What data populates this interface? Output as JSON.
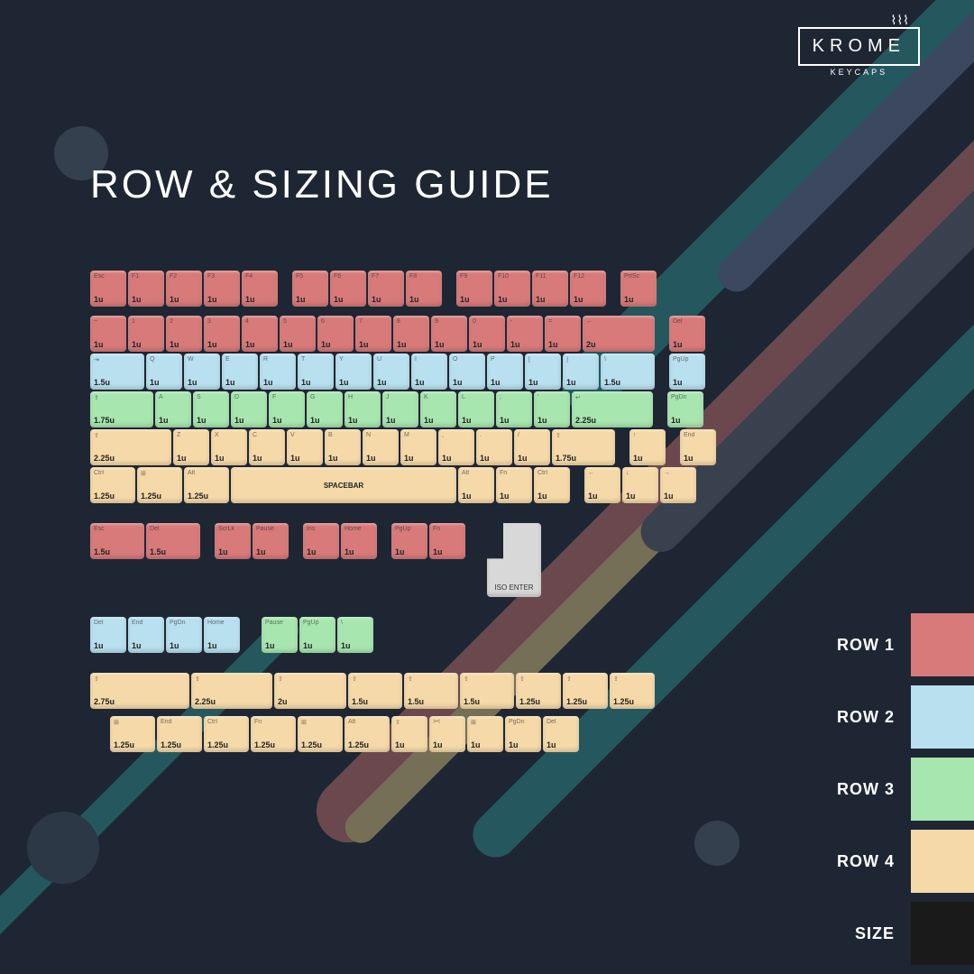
{
  "brand": {
    "name": "KROME",
    "sub": "KEYCAPS"
  },
  "title": "ROW & SIZING GUIDE",
  "unit": 40,
  "colors": {
    "row1": "#d87a7a",
    "row2": "#b8e0ef",
    "row3": "#a8e6b0",
    "row4": "#f5d9a8",
    "size": "#1a1a1a",
    "iso": "#d8d8d8",
    "bg": "#1e2633"
  },
  "legend": [
    {
      "label": "ROW 1",
      "color": "row1"
    },
    {
      "label": "ROW 2",
      "color": "row2"
    },
    {
      "label": "ROW 3",
      "color": "row3"
    },
    {
      "label": "ROW 4",
      "color": "row4"
    },
    {
      "label": "SIZE",
      "color": "size"
    }
  ],
  "rows": [
    {
      "c": "row1",
      "keys": [
        {
          "l": "Esc",
          "s": 1
        },
        {
          "l": "F1",
          "s": 1
        },
        {
          "l": "F2",
          "s": 1
        },
        {
          "l": "F3",
          "s": 1
        },
        {
          "l": "F4",
          "s": 1
        },
        {
          "gap": 0.3
        },
        {
          "l": "F5",
          "s": 1
        },
        {
          "l": "F6",
          "s": 1
        },
        {
          "l": "F7",
          "s": 1
        },
        {
          "l": "F8",
          "s": 1
        },
        {
          "gap": 0.3
        },
        {
          "l": "F9",
          "s": 1
        },
        {
          "l": "F10",
          "s": 1
        },
        {
          "l": "F11",
          "s": 1
        },
        {
          "l": "F12",
          "s": 1
        },
        {
          "gap": 0.3
        },
        {
          "l": "PrtSc",
          "s": 1
        }
      ]
    },
    {
      "spacer": 8
    },
    {
      "c": "row1",
      "keys": [
        {
          "l": "~",
          "s": 1
        },
        {
          "l": "1",
          "s": 1
        },
        {
          "l": "2",
          "s": 1
        },
        {
          "l": "3",
          "s": 1
        },
        {
          "l": "4",
          "s": 1
        },
        {
          "l": "5",
          "s": 1
        },
        {
          "l": "6",
          "s": 1
        },
        {
          "l": "7",
          "s": 1
        },
        {
          "l": "8",
          "s": 1
        },
        {
          "l": "9",
          "s": 1
        },
        {
          "l": "0",
          "s": 1
        },
        {
          "l": "-",
          "s": 1
        },
        {
          "l": "=",
          "s": 1
        },
        {
          "l": "←",
          "s": 2
        },
        {
          "gap": 0.3
        },
        {
          "l": "Del",
          "s": 1
        }
      ]
    },
    {
      "c": "row2",
      "keys": [
        {
          "l": "⇥",
          "s": 1.5
        },
        {
          "l": "Q",
          "s": 1
        },
        {
          "l": "W",
          "s": 1
        },
        {
          "l": "E",
          "s": 1
        },
        {
          "l": "R",
          "s": 1
        },
        {
          "l": "T",
          "s": 1
        },
        {
          "l": "Y",
          "s": 1
        },
        {
          "l": "U",
          "s": 1
        },
        {
          "l": "I",
          "s": 1
        },
        {
          "l": "O",
          "s": 1
        },
        {
          "l": "P",
          "s": 1
        },
        {
          "l": "[",
          "s": 1
        },
        {
          "l": "]",
          "s": 1
        },
        {
          "l": "\\",
          "s": 1.5
        },
        {
          "gap": 0.3
        },
        {
          "l": "PgUp",
          "s": 1
        }
      ]
    },
    {
      "c": "row3",
      "keys": [
        {
          "l": "⇪",
          "s": 1.75
        },
        {
          "l": "A",
          "s": 1
        },
        {
          "l": "S",
          "s": 1
        },
        {
          "l": "D",
          "s": 1
        },
        {
          "l": "F",
          "s": 1
        },
        {
          "l": "G",
          "s": 1
        },
        {
          "l": "H",
          "s": 1
        },
        {
          "l": "J",
          "s": 1
        },
        {
          "l": "K",
          "s": 1
        },
        {
          "l": "L",
          "s": 1
        },
        {
          "l": ";",
          "s": 1
        },
        {
          "l": "'",
          "s": 1
        },
        {
          "l": "↵",
          "s": 2.25
        },
        {
          "gap": 0.3
        },
        {
          "l": "PgDn",
          "s": 1
        }
      ]
    },
    {
      "c": "row4",
      "keys": [
        {
          "l": "⇧",
          "s": 2.25
        },
        {
          "l": "Z",
          "s": 1
        },
        {
          "l": "X",
          "s": 1
        },
        {
          "l": "C",
          "s": 1
        },
        {
          "l": "V",
          "s": 1
        },
        {
          "l": "B",
          "s": 1
        },
        {
          "l": "N",
          "s": 1
        },
        {
          "l": "M",
          "s": 1
        },
        {
          "l": ",",
          "s": 1
        },
        {
          "l": ".",
          "s": 1
        },
        {
          "l": "/",
          "s": 1
        },
        {
          "l": "⇧",
          "s": 1.75
        },
        {
          "gap": 0.3
        },
        {
          "l": "↑",
          "s": 1
        },
        {
          "gap": 0.3
        },
        {
          "l": "End",
          "s": 1
        }
      ]
    },
    {
      "c": "row4",
      "keys": [
        {
          "l": "Ctrl",
          "s": 1.25
        },
        {
          "l": "⊞",
          "s": 1.25
        },
        {
          "l": "Alt",
          "s": 1.25
        },
        {
          "l": "SPACEBAR",
          "s": 6.25,
          "center": true
        },
        {
          "l": "Alt",
          "s": 1
        },
        {
          "l": "Fn",
          "s": 1
        },
        {
          "l": "Ctrl",
          "s": 1
        },
        {
          "gap": 0.3
        },
        {
          "l": "←",
          "s": 1
        },
        {
          "l": "↓",
          "s": 1
        },
        {
          "l": "→",
          "s": 1
        }
      ]
    },
    {
      "spacer": 20
    },
    {
      "c": "row1",
      "iso": true,
      "keys": [
        {
          "l": "Esc",
          "s": 1.5
        },
        {
          "l": "Del",
          "s": 1.5
        },
        {
          "gap": 0.3
        },
        {
          "l": "ScrLk",
          "s": 1
        },
        {
          "l": "Pause",
          "s": 1
        },
        {
          "gap": 0.3
        },
        {
          "l": "Ins",
          "s": 1
        },
        {
          "l": "Home",
          "s": 1
        },
        {
          "gap": 0.3
        },
        {
          "l": "PgUp",
          "s": 1
        },
        {
          "l": "Fn",
          "s": 1
        }
      ]
    },
    {
      "spacer": 20
    },
    {
      "mixed": true,
      "keys": [
        {
          "c": "row2",
          "l": "Del",
          "s": 1
        },
        {
          "c": "row2",
          "l": "End",
          "s": 1
        },
        {
          "c": "row2",
          "l": "PgDn",
          "s": 1
        },
        {
          "c": "row2",
          "l": "Home",
          "s": 1
        },
        {
          "gap": 0.5
        },
        {
          "c": "row3",
          "l": "Pause",
          "s": 1
        },
        {
          "c": "row3",
          "l": "PgUp",
          "s": 1
        },
        {
          "c": "row3",
          "l": "\\",
          "s": 1
        }
      ]
    },
    {
      "spacer": 20
    },
    {
      "c": "row4",
      "keys": [
        {
          "l": "⇧",
          "s": 2.75
        },
        {
          "l": "⇧",
          "s": 2.25
        },
        {
          "l": "⇧",
          "s": 2
        },
        {
          "l": "⇧",
          "s": 1.5
        },
        {
          "l": "⇧",
          "s": 1.5
        },
        {
          "l": "⇧",
          "s": 1.5
        },
        {
          "l": "⇧",
          "s": 1.25
        },
        {
          "l": "⇧",
          "s": 1.25
        },
        {
          "l": "⇧",
          "s": 1.25
        }
      ]
    },
    {
      "spacer": 6
    },
    {
      "c": "row4",
      "keys": [
        {
          "gap": 0.5
        },
        {
          "l": "⊞",
          "s": 1.25
        },
        {
          "l": "End",
          "s": 1.25
        },
        {
          "l": "Ctrl",
          "s": 1.25
        },
        {
          "l": "Fn",
          "s": 1.25
        },
        {
          "l": "⊞",
          "s": 1.25
        },
        {
          "l": "Alt",
          "s": 1.25
        },
        {
          "l": "⇧",
          "s": 1
        },
        {
          "l": "><",
          "s": 1
        },
        {
          "l": "⊞",
          "s": 1
        },
        {
          "l": "PgDn",
          "s": 1
        },
        {
          "l": "Del",
          "s": 1
        }
      ]
    }
  ],
  "iso_label": "ISO ENTER"
}
